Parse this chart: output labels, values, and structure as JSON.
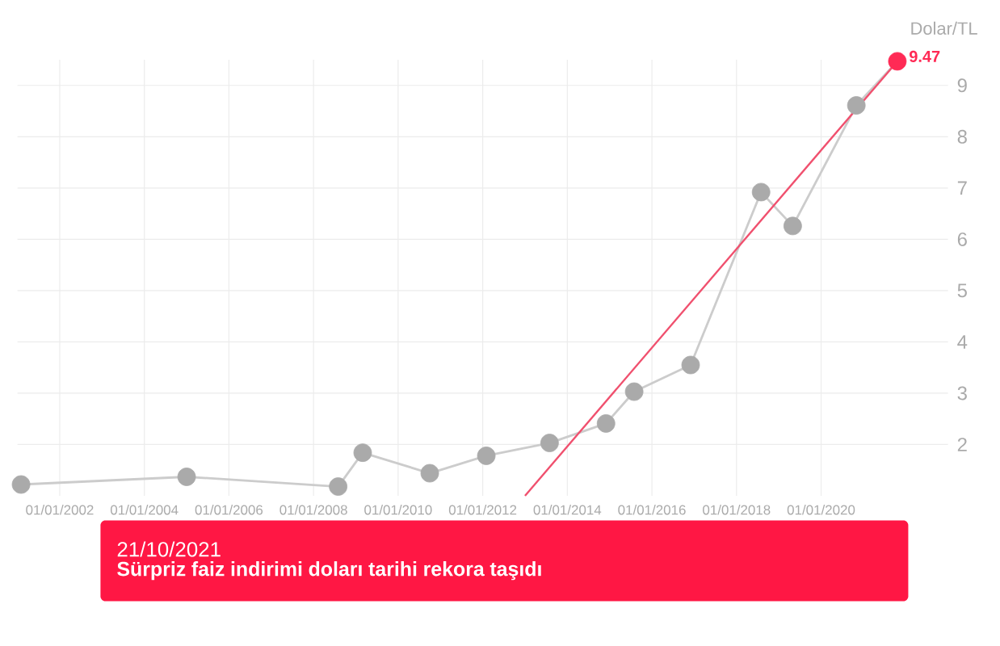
{
  "chart_data": {
    "type": "line",
    "ylabel": "Dolar/TL",
    "xlim": [
      "2001-01-01",
      "2023-01-01"
    ],
    "ylim": [
      1,
      9.5
    ],
    "xticks": [
      {
        "value": "2002-01-01",
        "label": "01/01/2002"
      },
      {
        "value": "2004-01-01",
        "label": "01/01/2004"
      },
      {
        "value": "2006-01-01",
        "label": "01/01/2006"
      },
      {
        "value": "2008-01-01",
        "label": "01/01/2008"
      },
      {
        "value": "2010-01-01",
        "label": "01/01/2010"
      },
      {
        "value": "2012-01-01",
        "label": "01/01/2012"
      },
      {
        "value": "2014-01-01",
        "label": "01/01/2014"
      },
      {
        "value": "2016-01-01",
        "label": "01/01/2016"
      },
      {
        "value": "2018-01-01",
        "label": "01/01/2018"
      },
      {
        "value": "2020-01-01",
        "label": "01/01/2020"
      }
    ],
    "yticks": [
      2,
      3,
      4,
      5,
      6,
      7,
      8,
      9
    ],
    "grid": true,
    "line_style": "solid",
    "series": [
      {
        "color": "#cccccc",
        "marker": "circle",
        "colors": [
          "#aaaaaa",
          "#aaaaaa",
          "#aaaaaa",
          "#aaaaaa",
          "#aaaaaa",
          "#aaaaaa",
          "#aaaaaa",
          "#aaaaaa",
          "#aaaaaa",
          "#aaaaaa",
          "#aaaaaa",
          "#aaaaaa",
          "#aaaaaa",
          "#ff2a55"
        ],
        "x": [
          "2001-02",
          "2005-01",
          "2008-08",
          "2009-03",
          "2010-10",
          "2012-02",
          "2013-08",
          "2014-12",
          "2015-08",
          "2016-12",
          "2018-08",
          "2019-05",
          "2020-11",
          "2021-10-21"
        ],
        "values": [
          1.22,
          1.37,
          1.18,
          1.84,
          1.44,
          1.78,
          2.03,
          2.41,
          3.03,
          3.55,
          6.92,
          6.26,
          8.61,
          9.47
        ],
        "value_labels": [
          null,
          null,
          null,
          null,
          null,
          null,
          null,
          null,
          null,
          null,
          null,
          null,
          null,
          "9.47"
        ]
      },
      {
        "color": "#f0506e",
        "marker": "none",
        "x": [
          "2013-01",
          "2021-10-21"
        ],
        "values": [
          1,
          9.47
        ]
      }
    ],
    "annotations": [
      "21/10/2021",
      "Sürpriz faiz indirimi doları tarihi rekora taşıdı"
    ]
  }
}
